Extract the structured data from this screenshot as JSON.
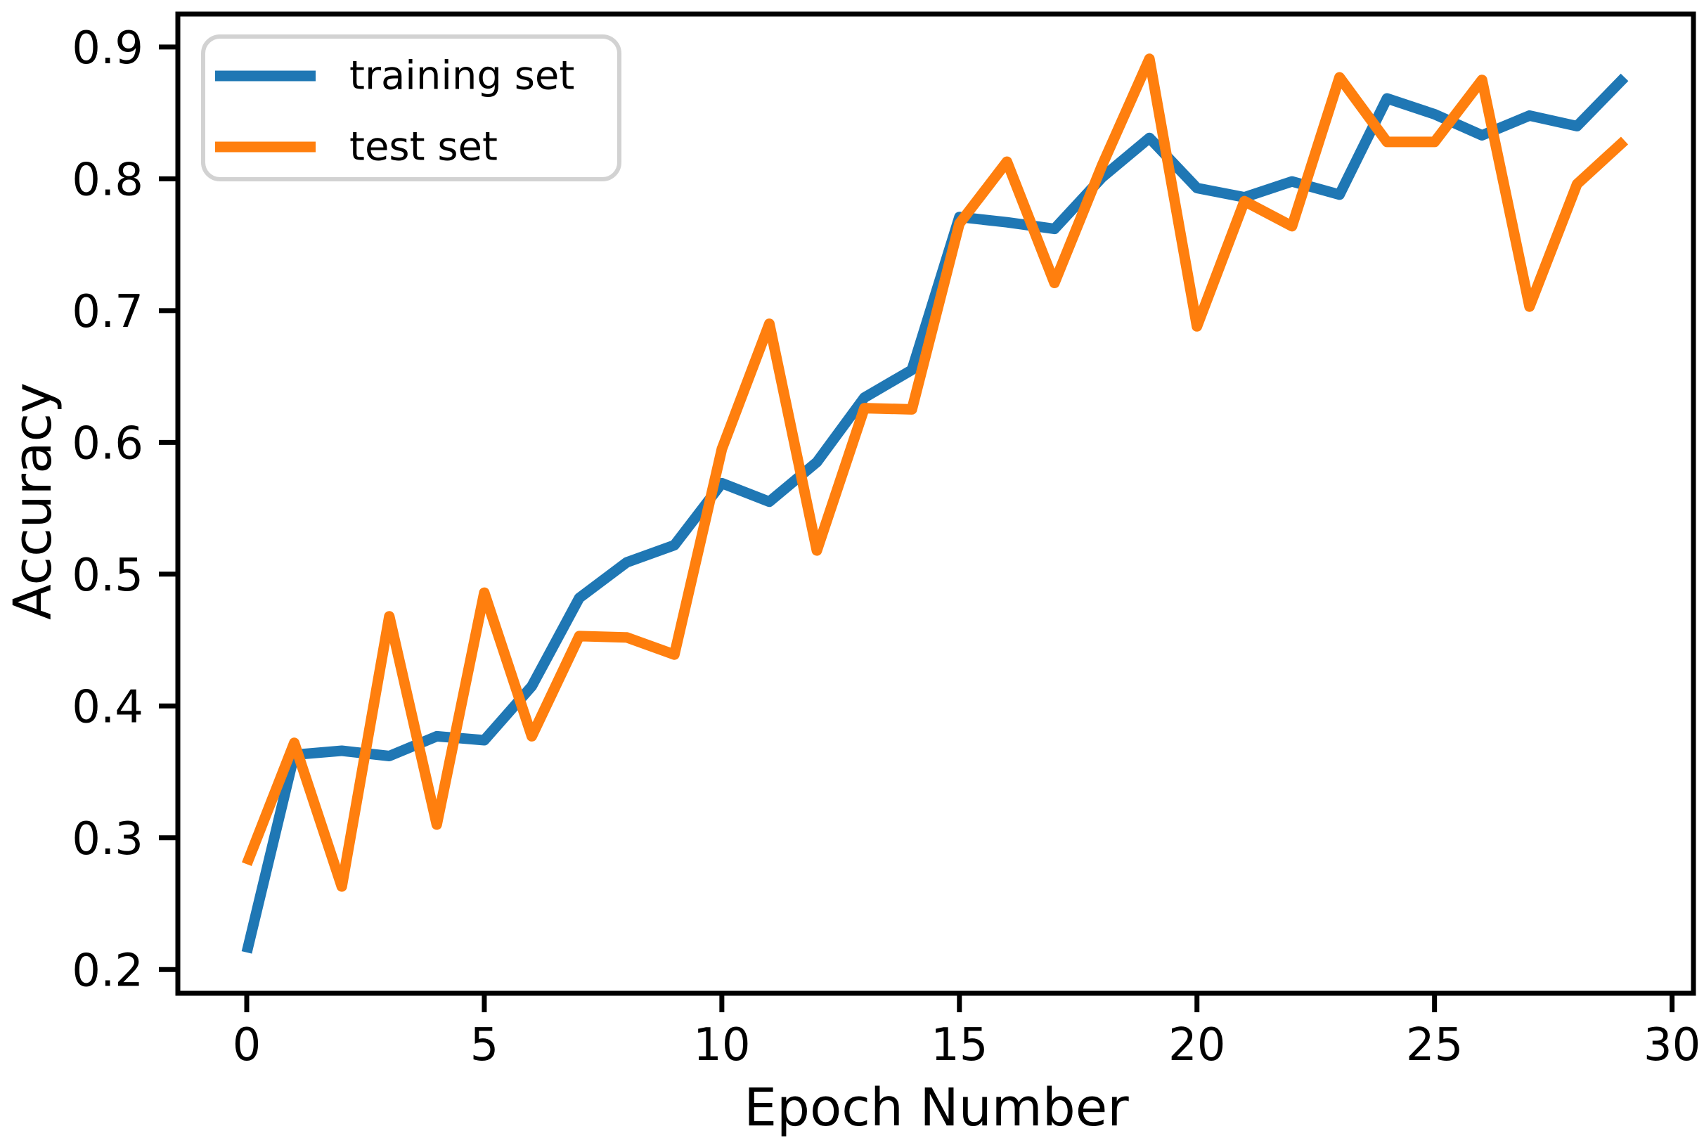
{
  "chart_data": {
    "type": "line",
    "title": "",
    "xlabel": "Epoch Number",
    "ylabel": "Accuracy",
    "x": [
      0,
      1,
      2,
      3,
      4,
      5,
      6,
      7,
      8,
      9,
      10,
      11,
      12,
      13,
      14,
      15,
      16,
      17,
      18,
      19,
      20,
      21,
      22,
      23,
      24,
      25,
      26,
      27,
      28,
      29
    ],
    "series": [
      {
        "name": "training set",
        "color": "#1f77b4",
        "values": [
          0.213,
          0.363,
          0.366,
          0.362,
          0.377,
          0.374,
          0.415,
          0.482,
          0.509,
          0.522,
          0.569,
          0.555,
          0.585,
          0.634,
          0.655,
          0.771,
          0.767,
          0.762,
          0.801,
          0.831,
          0.793,
          0.786,
          0.798,
          0.788,
          0.861,
          0.849,
          0.833,
          0.848,
          0.84,
          0.877
        ]
      },
      {
        "name": "test set",
        "color": "#ff7f0e",
        "values": [
          0.28,
          0.372,
          0.263,
          0.468,
          0.31,
          0.486,
          0.377,
          0.453,
          0.452,
          0.439,
          0.595,
          0.69,
          0.518,
          0.626,
          0.625,
          0.766,
          0.813,
          0.721,
          0.81,
          0.891,
          0.688,
          0.783,
          0.764,
          0.877,
          0.828,
          0.828,
          0.875,
          0.703,
          0.796,
          0.829
        ]
      }
    ],
    "xticks": [
      0,
      5,
      10,
      15,
      20,
      25,
      30
    ],
    "yticks": [
      0.2,
      0.3,
      0.4,
      0.5,
      0.6,
      0.7,
      0.8,
      0.9
    ],
    "xlim": [
      -1.45,
      30.45
    ],
    "ylim": [
      0.182,
      0.925
    ],
    "grid": false,
    "legend_position": "upper left",
    "axis_color": "#000000",
    "legend_border_color": "#d2d2d2",
    "legend_background": "#ffffff"
  }
}
